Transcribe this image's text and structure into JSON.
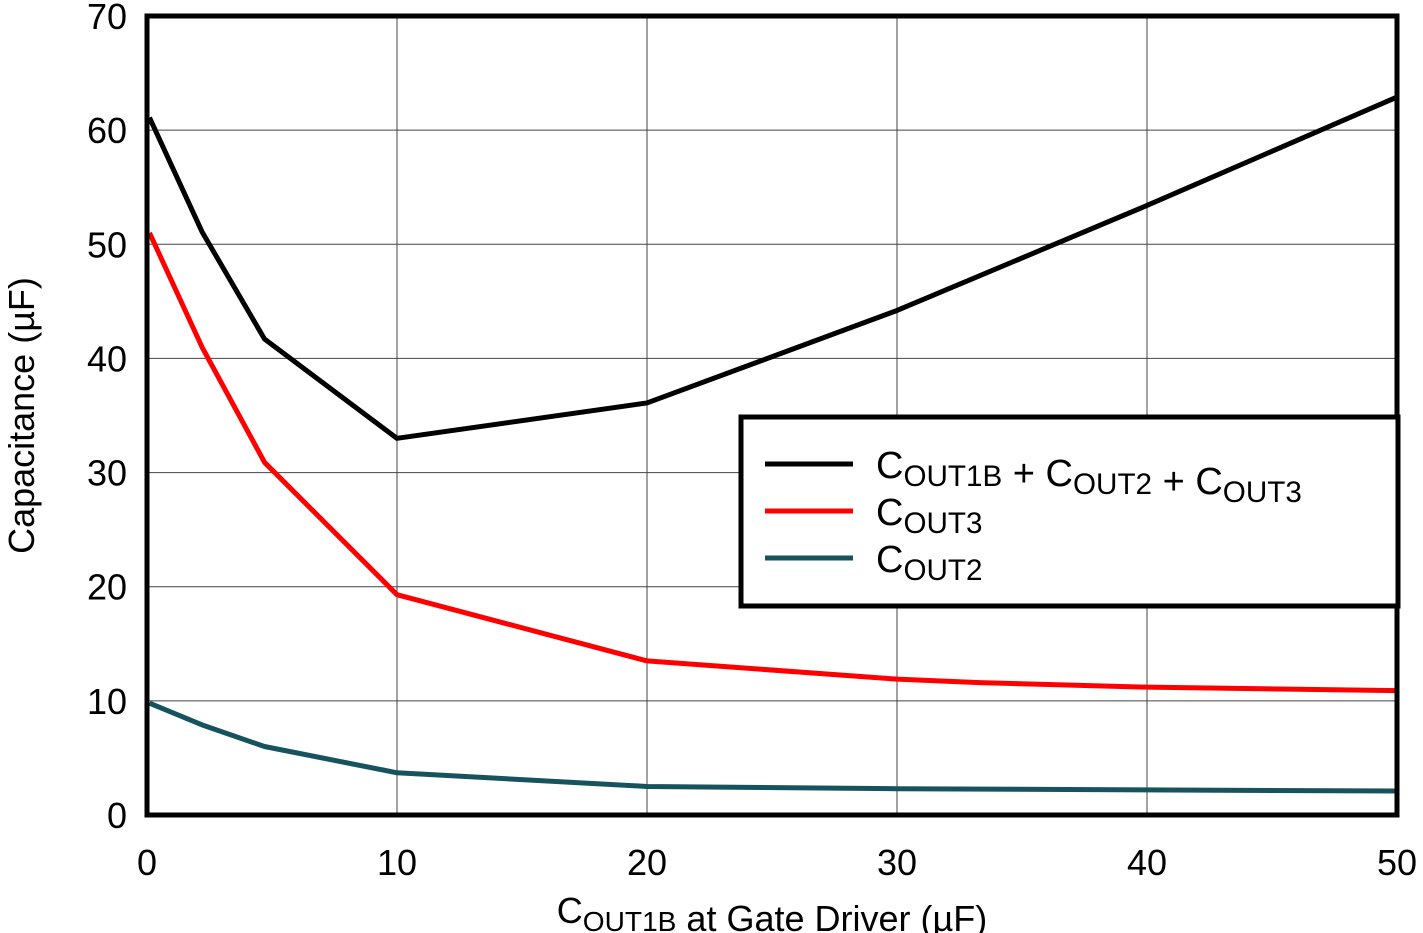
{
  "chart_data": {
    "type": "line",
    "title": "",
    "xlabel": "COUT1B at Gate Driver (µF)",
    "ylabel": "Capacitance (µF)",
    "xlim": [
      0,
      50
    ],
    "ylim": [
      0,
      70
    ],
    "xticks": [
      0,
      10,
      20,
      30,
      40,
      50
    ],
    "yticks": [
      0,
      10,
      20,
      30,
      40,
      50,
      60,
      70
    ],
    "grid": true,
    "legend_placement": "center-right",
    "series": [
      {
        "name": "COUT1B + COUT2 + COUT3",
        "color": "#000000",
        "x": [
          0.1,
          2.2,
          4.7,
          10,
          20,
          30,
          40,
          50
        ],
        "y": [
          61.1,
          51.1,
          41.7,
          33.0,
          36.1,
          44.2,
          53.4,
          62.9
        ]
      },
      {
        "name": "COUT3",
        "color": "#ff0000",
        "x": [
          0.1,
          2.2,
          4.7,
          10,
          20,
          30,
          33.3,
          40,
          50
        ],
        "y": [
          51.0,
          41.0,
          30.9,
          19.3,
          13.5,
          11.9,
          11.6,
          11.2,
          10.9
        ]
      },
      {
        "name": "COUT2",
        "color": "#17535f",
        "x": [
          0.1,
          2.2,
          4.7,
          10,
          20,
          30,
          50
        ],
        "y": [
          9.8,
          7.9,
          6.0,
          3.7,
          2.5,
          2.3,
          2.1
        ]
      }
    ]
  }
}
